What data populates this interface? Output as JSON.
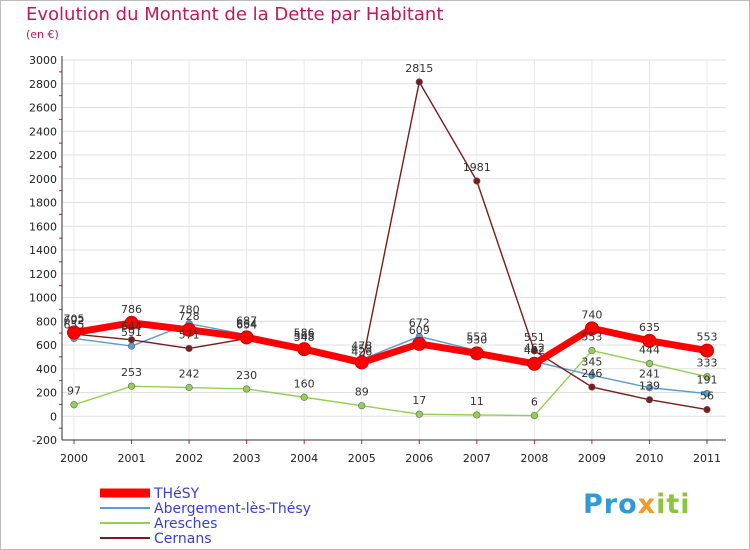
{
  "chart_data": {
    "type": "line",
    "title": "Evolution du Montant de la Dette par Habitant",
    "subtitle": "(en €)",
    "xlabel": "",
    "ylabel": "",
    "ylim": [
      -200,
      3000
    ],
    "yticks": [
      -200,
      0,
      200,
      400,
      600,
      800,
      1000,
      1200,
      1400,
      1600,
      1800,
      2000,
      2200,
      2400,
      2600,
      2800,
      3000
    ],
    "categories": [
      "2000",
      "2001",
      "2002",
      "2003",
      "2004",
      "2005",
      "2006",
      "2007",
      "2008",
      "2009",
      "2010",
      "2011"
    ],
    "series": [
      {
        "name": "THéSY",
        "color": "#ff0000",
        "values": [
          705,
          786,
          728,
          664,
          565,
          453,
          609,
          530,
          442,
          740,
          635,
          553
        ],
        "labels": [
          "705",
          "786",
          "728",
          "664",
          "565",
          "453",
          "609",
          "530",
          "442",
          "740",
          "635",
          "553"
        ]
      },
      {
        "name": "Abergement-lès-Thésy",
        "color": "#5b9bd5",
        "values": [
          655,
          591,
          780,
          687,
          586,
          478,
          672,
          553,
          462,
          345,
          241,
          191
        ],
        "labels": [
          "655",
          "591",
          "780",
          "687",
          "586",
          "478",
          "672",
          "553",
          "462",
          "345",
          "241",
          "191"
        ]
      },
      {
        "name": "Aresches",
        "color": "#92d050",
        "values": [
          97,
          253,
          242,
          230,
          160,
          89,
          17,
          11,
          6,
          553,
          444,
          333
        ],
        "labels": [
          "97",
          "253",
          "242",
          "230",
          "160",
          "89",
          "17",
          "11",
          "6",
          "553",
          "444",
          "333"
        ]
      },
      {
        "name": "Cernans",
        "color": "#7b1c1c",
        "values": [
          692,
          644,
          571,
          654,
          548,
          426,
          2815,
          1981,
          551,
          246,
          139,
          56
        ],
        "labels": [
          "692",
          "644",
          "571",
          "654",
          "548",
          "426",
          "2815",
          "1981",
          "551",
          "246",
          "139",
          "56"
        ]
      }
    ],
    "legend": {
      "placement": "bottom-left"
    }
  },
  "brand": {
    "part1": "Pro",
    "part2": "x",
    "part3": "iti"
  }
}
